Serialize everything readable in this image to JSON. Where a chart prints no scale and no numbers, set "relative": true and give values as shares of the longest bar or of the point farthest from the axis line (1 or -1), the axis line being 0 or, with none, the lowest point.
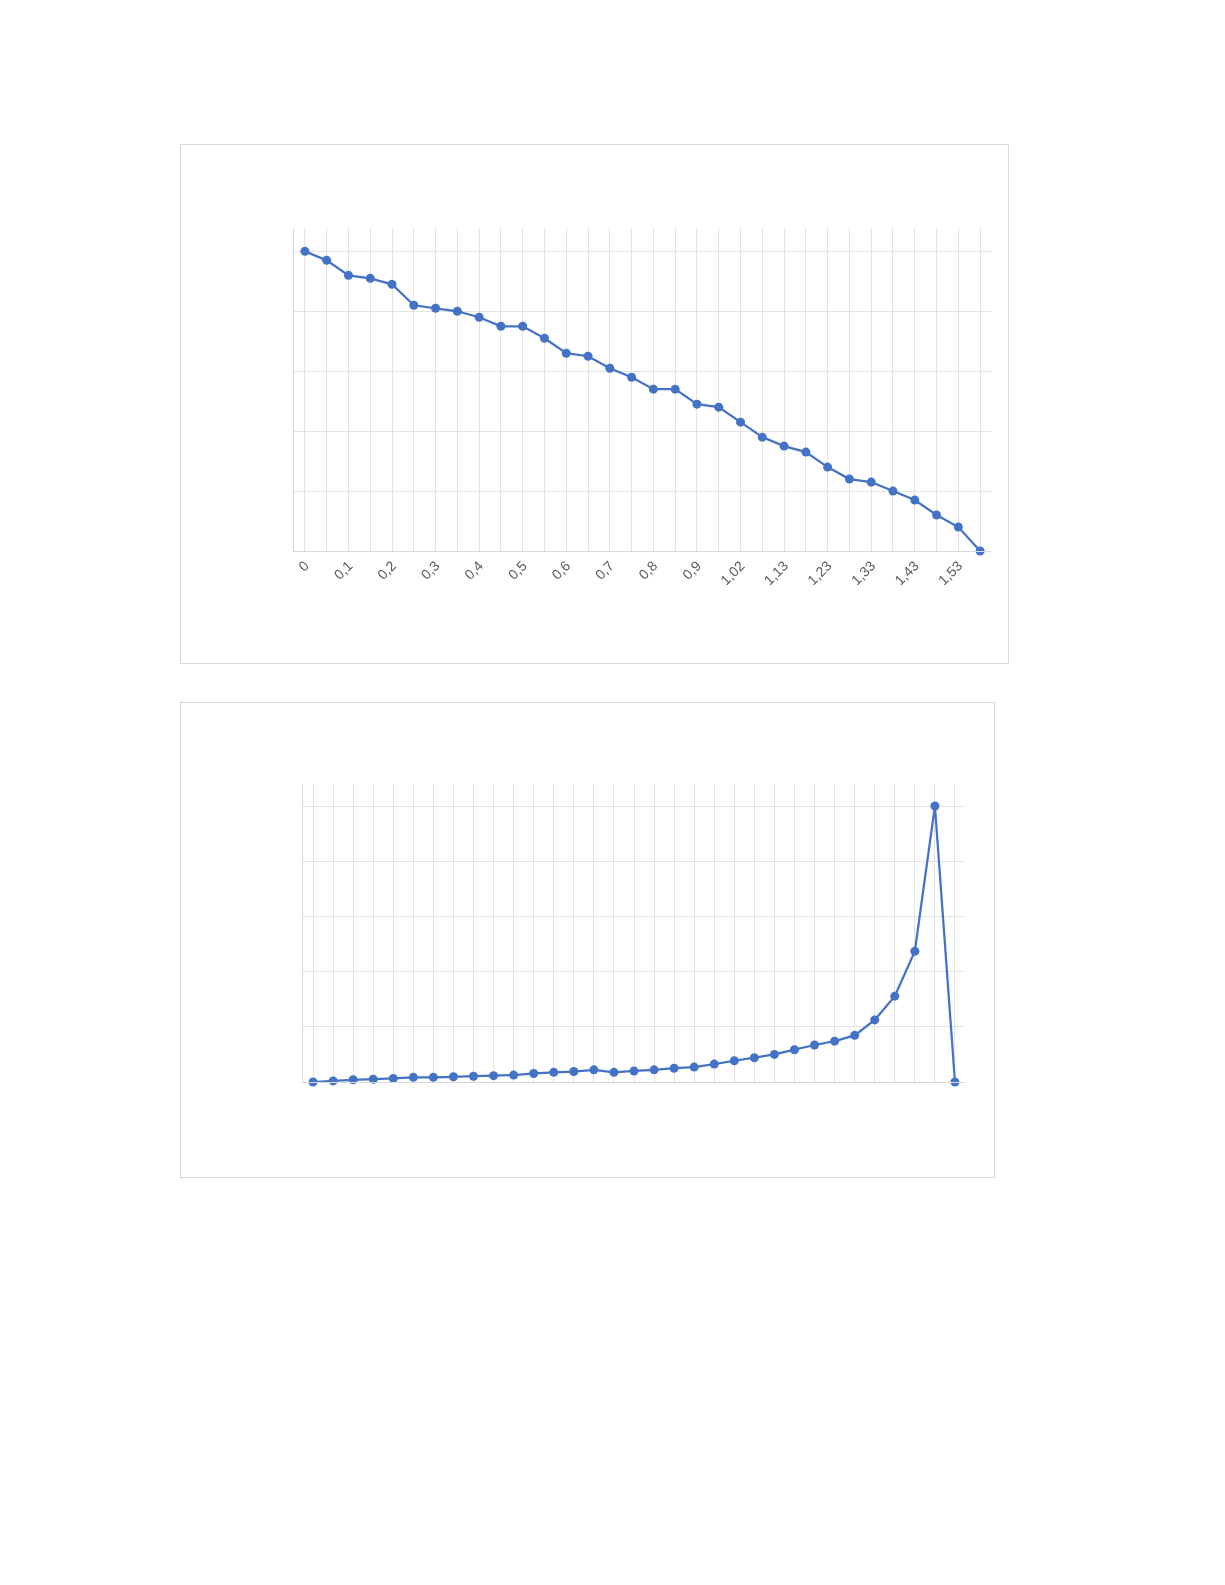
{
  "chart_data": [
    {
      "type": "line",
      "relative": true,
      "categories": [
        "0",
        null,
        "0,1",
        null,
        "0,2",
        null,
        "0,3",
        null,
        "0,4",
        null,
        "0,5",
        null,
        "0,6",
        null,
        "0,7",
        null,
        "0,8",
        null,
        "0,9",
        null,
        "1,02",
        null,
        "1,13",
        null,
        "1,23",
        null,
        "1,33",
        null,
        "1,43",
        null,
        "1,53",
        null
      ],
      "series": [
        {
          "color": "#4472c4",
          "values": [
            1,
            0.97,
            0.92,
            0.91,
            0.89,
            0.82,
            0.81,
            0.8,
            0.78,
            0.75,
            0.75,
            0.71,
            0.66,
            0.65,
            0.61,
            0.58,
            0.54,
            0.54,
            0.49,
            0.48,
            0.43,
            0.38,
            0.35,
            0.33,
            0.28,
            0.24,
            0.23,
            0.2,
            0.17,
            0.12,
            0.08,
            0
          ]
        }
      ],
      "marker": "circle",
      "line_style": "solid",
      "grid": true
    },
    {
      "type": "line",
      "relative": true,
      "categories": [
        null,
        null,
        null,
        null,
        null,
        null,
        null,
        null,
        null,
        null,
        null,
        null,
        null,
        null,
        null,
        null,
        null,
        null,
        null,
        null,
        null,
        null,
        null,
        null,
        null,
        null,
        null,
        null,
        null,
        null,
        null,
        null,
        null
      ],
      "series": [
        {
          "color": "#4472c4",
          "values": [
            0,
            0.004,
            0.008,
            0.01,
            0.013,
            0.017,
            0.017,
            0.019,
            0.021,
            0.023,
            0.025,
            0.031,
            0.035,
            0.038,
            0.044,
            0.035,
            0.04,
            0.044,
            0.05,
            0.054,
            0.065,
            0.077,
            0.088,
            0.1,
            0.117,
            0.134,
            0.148,
            0.169,
            0.225,
            0.311,
            0.474,
            1,
            0
          ]
        }
      ],
      "marker": "circle",
      "line_style": "solid",
      "grid": true
    }
  ]
}
